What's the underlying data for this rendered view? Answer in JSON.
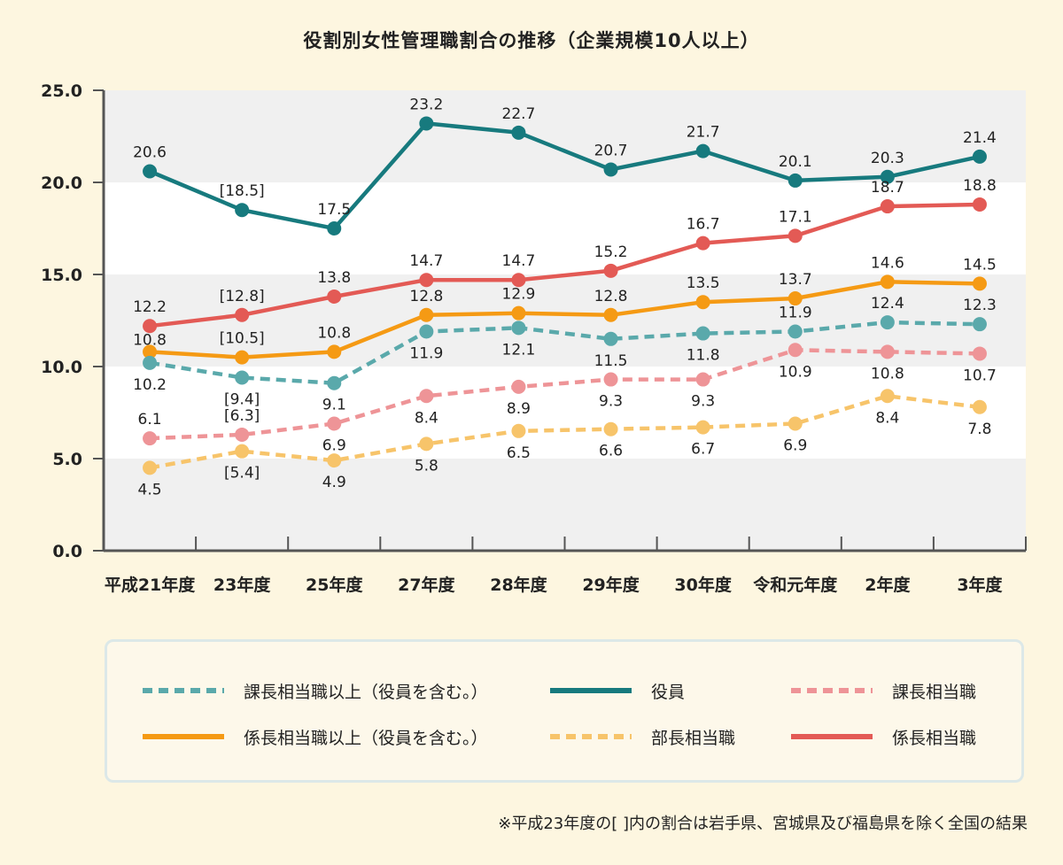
{
  "chart_data": {
    "type": "line",
    "title": "役割別女性管理職割合の推移（企業規模10人以上）",
    "categories": [
      "平成21年度",
      "23年度",
      "25年度",
      "27年度",
      "28年度",
      "29年度",
      "30年度",
      "令和元年度",
      "2年度",
      "3年度"
    ],
    "ylim": [
      0,
      25
    ],
    "yticks": [
      "0.0",
      "5.0",
      "10.0",
      "15.0",
      "20.0",
      "25.0"
    ],
    "grid": "horizontal bands",
    "legend_placement": "bottom",
    "series": [
      {
        "name": "役員",
        "key": "yakuin",
        "color": "#177a7e",
        "dashed": false,
        "values": [
          20.6,
          18.5,
          17.5,
          23.2,
          22.7,
          20.7,
          21.7,
          20.1,
          20.3,
          21.4
        ],
        "labels": [
          "20.6",
          "[18.5]",
          "17.5",
          "23.2",
          "22.7",
          "20.7",
          "21.7",
          "20.1",
          "20.3",
          "21.4"
        ]
      },
      {
        "name": "係長相当職",
        "key": "kakaricho",
        "color": "#e35a55",
        "dashed": false,
        "values": [
          12.2,
          12.8,
          13.8,
          14.7,
          14.7,
          15.2,
          16.7,
          17.1,
          18.7,
          18.8
        ],
        "labels": [
          "12.2",
          "[12.8]",
          "13.8",
          "14.7",
          "14.7",
          "15.2",
          "16.7",
          "17.1",
          "18.7",
          "18.8"
        ]
      },
      {
        "name": "係長相当職以上（役員を含む。）",
        "key": "kakaricho_ijo",
        "color": "#f59a14",
        "dashed": false,
        "values": [
          10.8,
          10.5,
          10.8,
          12.8,
          12.9,
          12.8,
          13.5,
          13.7,
          14.6,
          14.5
        ],
        "labels": [
          "10.8",
          "[10.5]",
          "10.8",
          "12.8",
          "12.9",
          "12.8",
          "13.5",
          "13.7",
          "14.6",
          "14.5"
        ]
      },
      {
        "name": "課長相当職以上（役員を含む。）",
        "key": "kacho_ijo",
        "color": "#5aa9ab",
        "dashed": true,
        "values": [
          10.2,
          9.4,
          9.1,
          11.9,
          12.1,
          11.5,
          11.8,
          11.9,
          12.4,
          12.3
        ],
        "labels": [
          "10.2",
          "[9.4]",
          "9.1",
          "11.9",
          "12.1",
          "11.5",
          "11.8",
          "11.9",
          "12.4",
          "12.3"
        ]
      },
      {
        "name": "課長相当職",
        "key": "kacho",
        "color": "#ee9497",
        "dashed": true,
        "values": [
          6.1,
          6.3,
          6.9,
          8.4,
          8.9,
          9.3,
          9.3,
          10.9,
          10.8,
          10.7
        ],
        "labels": [
          "6.1",
          "[6.3]",
          "6.9",
          "8.4",
          "8.9",
          "9.3",
          "9.3",
          "10.9",
          "10.8",
          "10.7"
        ]
      },
      {
        "name": "部長相当職",
        "key": "bucho",
        "color": "#f7c46a",
        "dashed": true,
        "values": [
          4.5,
          5.4,
          4.9,
          5.8,
          6.5,
          6.6,
          6.7,
          6.9,
          8.4,
          7.8
        ],
        "labels": [
          "4.5",
          "[5.4]",
          "4.9",
          "5.8",
          "6.5",
          "6.6",
          "6.7",
          "6.9",
          "8.4",
          "7.8"
        ]
      }
    ]
  },
  "legend": {
    "items": [
      {
        "label": "課長相当職以上（役員を含む。）",
        "color": "#5aa9ab",
        "dashed": true
      },
      {
        "label": "役員",
        "color": "#177a7e",
        "dashed": false
      },
      {
        "label": "課長相当職",
        "color": "#ee9497",
        "dashed": true
      },
      {
        "label": "係長相当職以上（役員を含む。）",
        "color": "#f59a14",
        "dashed": false
      },
      {
        "label": "部長相当職",
        "color": "#f7c46a",
        "dashed": true
      },
      {
        "label": "係長相当職",
        "color": "#e35a55",
        "dashed": false
      }
    ]
  },
  "footnote": "※平成23年度の[ ]内の割合は岩手県、宮城県及び福島県を除く全国の結果"
}
